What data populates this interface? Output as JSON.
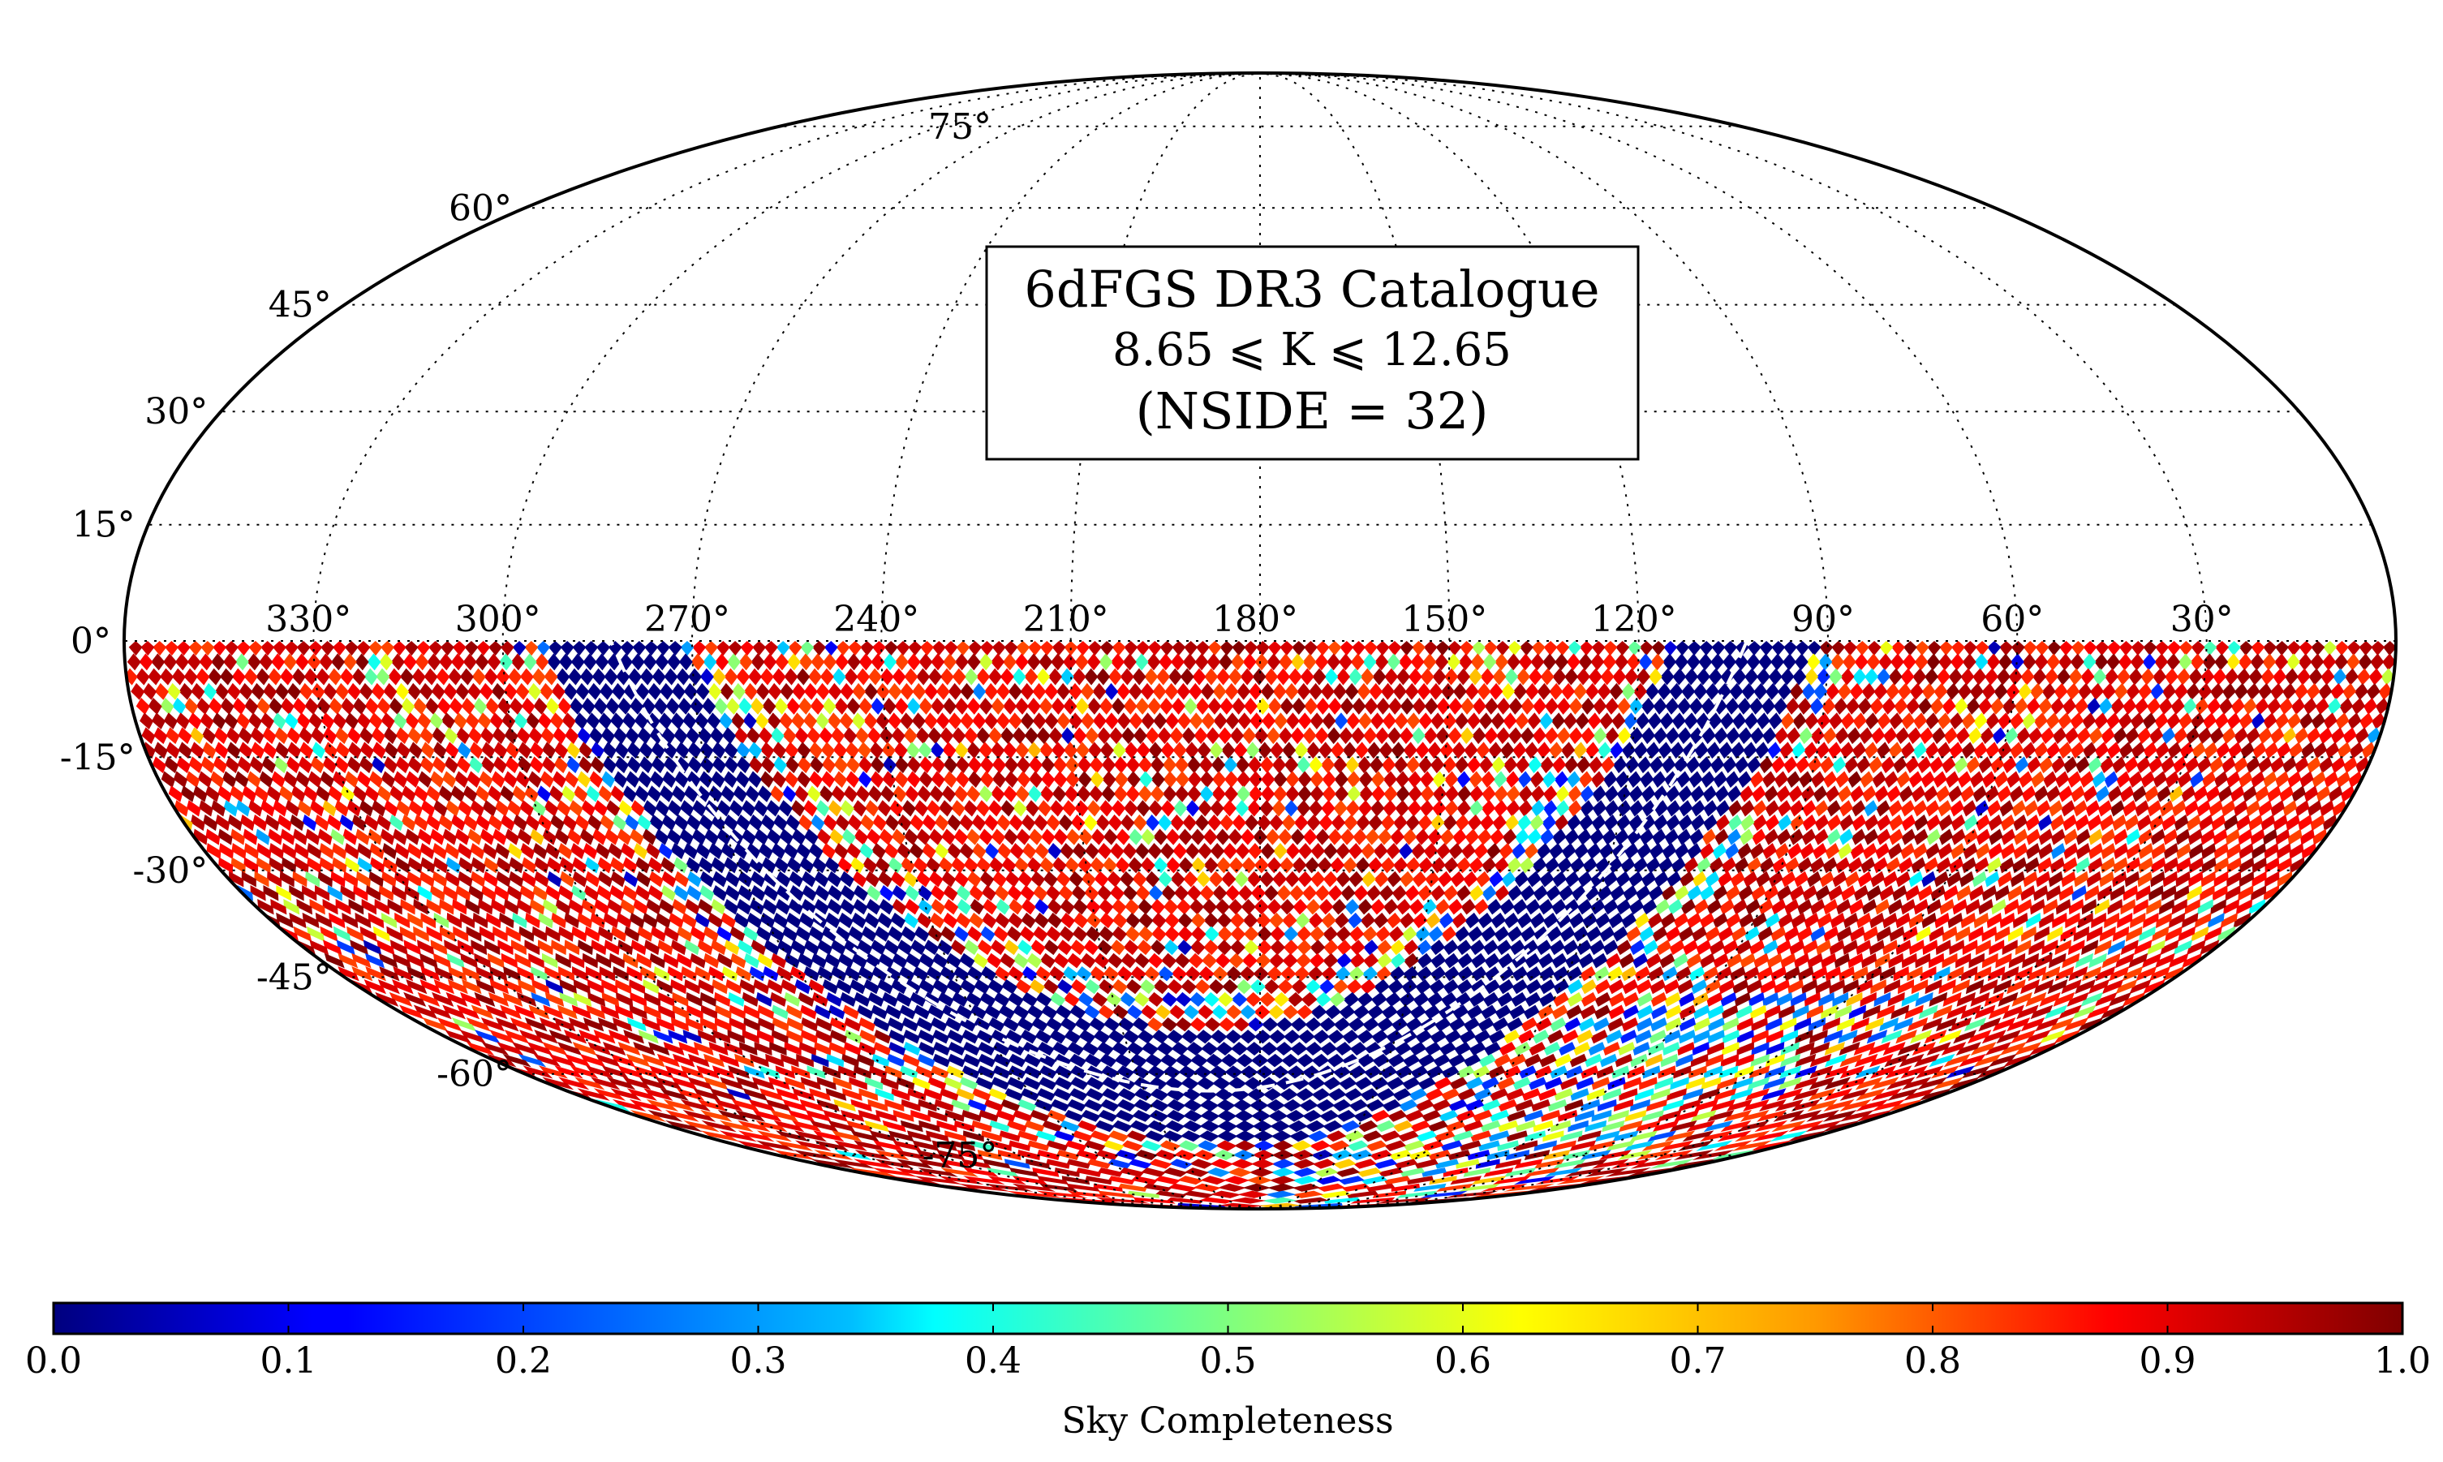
{
  "title": {
    "line1": "6dFGS DR3 Catalogue",
    "line2": "8.65 ⩽ K ⩽ 12.65",
    "line3": "(NSIDE = 32)"
  },
  "latitude_labels": [
    "75°",
    "60°",
    "45°",
    "30°",
    "15°",
    "0°",
    "-15°",
    "-30°",
    "-45°",
    "-60°",
    "-75°"
  ],
  "longitude_labels": [
    "330°",
    "300°",
    "270°",
    "240°",
    "210°",
    "180°",
    "150°",
    "120°",
    "90°",
    "60°",
    "30°"
  ],
  "colorbar": {
    "label": "Sky Completeness",
    "ticks": [
      "0.0",
      "0.1",
      "0.2",
      "0.3",
      "0.4",
      "0.5",
      "0.6",
      "0.7",
      "0.8",
      "0.9",
      "1.0"
    ],
    "min": 0.0,
    "max": 1.0,
    "colormap": "jet",
    "colors": [
      "#00007f",
      "#0000ff",
      "#007fff",
      "#00ffff",
      "#7fff7f",
      "#ffff00",
      "#ff7f00",
      "#ff0000",
      "#7f0000"
    ]
  },
  "chart_data": {
    "type": "heatmap",
    "projection": "mollweide",
    "coordinate_system": "equatorial",
    "title": "6dFGS DR3 Catalogue",
    "subtitle": "8.65 ⩽ K ⩽ 12.65 (NSIDE = 32)",
    "value_label": "Sky Completeness",
    "value_range": [
      0.0,
      1.0
    ],
    "coverage": "southern sky, declination 0° to -90°",
    "mask_region": "Galactic plane |b| < 10° has completeness 0.0",
    "galactic_plane_marker": "dashed white line along b = 0°",
    "typical_completeness": 0.9
  }
}
